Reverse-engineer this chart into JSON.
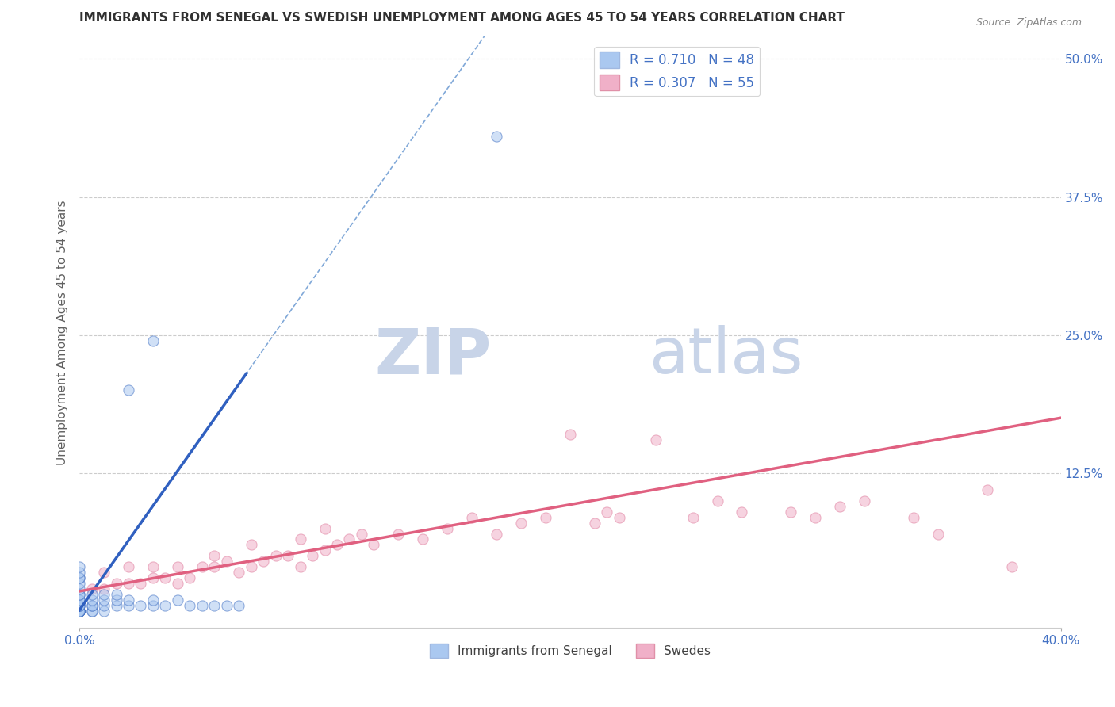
{
  "title": "IMMIGRANTS FROM SENEGAL VS SWEDISH UNEMPLOYMENT AMONG AGES 45 TO 54 YEARS CORRELATION CHART",
  "source_text": "Source: ZipAtlas.com",
  "ylabel": "Unemployment Among Ages 45 to 54 years",
  "xlim": [
    0.0,
    0.4
  ],
  "ylim": [
    -0.015,
    0.52
  ],
  "ytick_labels_right": [
    "50.0%",
    "37.5%",
    "25.0%",
    "12.5%",
    ""
  ],
  "ytick_values_right": [
    0.5,
    0.375,
    0.25,
    0.125,
    0.0
  ],
  "grid_values": [
    0.5,
    0.375,
    0.25,
    0.125
  ],
  "watermark_color": "#c8d4e8",
  "background_color": "#ffffff",
  "blue_scatter": {
    "x": [
      0.0,
      0.0,
      0.0,
      0.0,
      0.0,
      0.0,
      0.0,
      0.0,
      0.0,
      0.0,
      0.0,
      0.0,
      0.0,
      0.0,
      0.0,
      0.0,
      0.0,
      0.0,
      0.0,
      0.0,
      0.0,
      0.0,
      0.0,
      0.005,
      0.005,
      0.005,
      0.005,
      0.005,
      0.005,
      0.01,
      0.01,
      0.01,
      0.01,
      0.015,
      0.015,
      0.015,
      0.02,
      0.02,
      0.025,
      0.03,
      0.03,
      0.035,
      0.04,
      0.045,
      0.05,
      0.055,
      0.06,
      0.065
    ],
    "y": [
      0.0,
      0.0,
      0.0,
      0.0,
      0.0,
      0.0,
      0.0,
      0.0,
      0.0,
      0.005,
      0.005,
      0.005,
      0.01,
      0.01,
      0.01,
      0.015,
      0.015,
      0.02,
      0.025,
      0.03,
      0.03,
      0.035,
      0.04,
      0.0,
      0.0,
      0.005,
      0.005,
      0.01,
      0.015,
      0.0,
      0.005,
      0.01,
      0.015,
      0.005,
      0.01,
      0.015,
      0.005,
      0.01,
      0.005,
      0.005,
      0.01,
      0.005,
      0.01,
      0.005,
      0.005,
      0.005,
      0.005,
      0.005
    ]
  },
  "blue_scatter_outliers": {
    "x": [
      0.02,
      0.03,
      0.17
    ],
    "y": [
      0.2,
      0.245,
      0.43
    ]
  },
  "pink_scatter": {
    "x": [
      0.005,
      0.01,
      0.01,
      0.015,
      0.02,
      0.02,
      0.025,
      0.03,
      0.03,
      0.035,
      0.04,
      0.04,
      0.045,
      0.05,
      0.055,
      0.055,
      0.06,
      0.065,
      0.07,
      0.07,
      0.075,
      0.08,
      0.085,
      0.09,
      0.09,
      0.095,
      0.1,
      0.1,
      0.105,
      0.11,
      0.115,
      0.12,
      0.13,
      0.14,
      0.15,
      0.16,
      0.17,
      0.18,
      0.19,
      0.2,
      0.21,
      0.215,
      0.22,
      0.235,
      0.25,
      0.26,
      0.27,
      0.29,
      0.3,
      0.31,
      0.32,
      0.34,
      0.35,
      0.37,
      0.38
    ],
    "y": [
      0.02,
      0.02,
      0.035,
      0.025,
      0.025,
      0.04,
      0.025,
      0.03,
      0.04,
      0.03,
      0.025,
      0.04,
      0.03,
      0.04,
      0.04,
      0.05,
      0.045,
      0.035,
      0.04,
      0.06,
      0.045,
      0.05,
      0.05,
      0.04,
      0.065,
      0.05,
      0.055,
      0.075,
      0.06,
      0.065,
      0.07,
      0.06,
      0.07,
      0.065,
      0.075,
      0.085,
      0.07,
      0.08,
      0.085,
      0.16,
      0.08,
      0.09,
      0.085,
      0.155,
      0.085,
      0.1,
      0.09,
      0.09,
      0.085,
      0.095,
      0.1,
      0.085,
      0.07,
      0.11,
      0.04
    ]
  },
  "blue_solid_line": {
    "x": [
      0.0,
      0.068
    ],
    "y": [
      0.001,
      0.215
    ],
    "color": "#3060c0",
    "linewidth": 2.5
  },
  "blue_dashed_line": {
    "x": [
      0.0,
      0.4
    ],
    "y": [
      0.001,
      1.26
    ],
    "color": "#80a8d8",
    "linewidth": 1.2,
    "linestyle": "--"
  },
  "pink_line": {
    "x": [
      0.0,
      0.4
    ],
    "y": [
      0.018,
      0.175
    ],
    "color": "#e06080",
    "linewidth": 2.5
  },
  "title_color": "#303030",
  "title_fontsize": 11,
  "scatter_alpha": 0.55,
  "scatter_size": 90
}
